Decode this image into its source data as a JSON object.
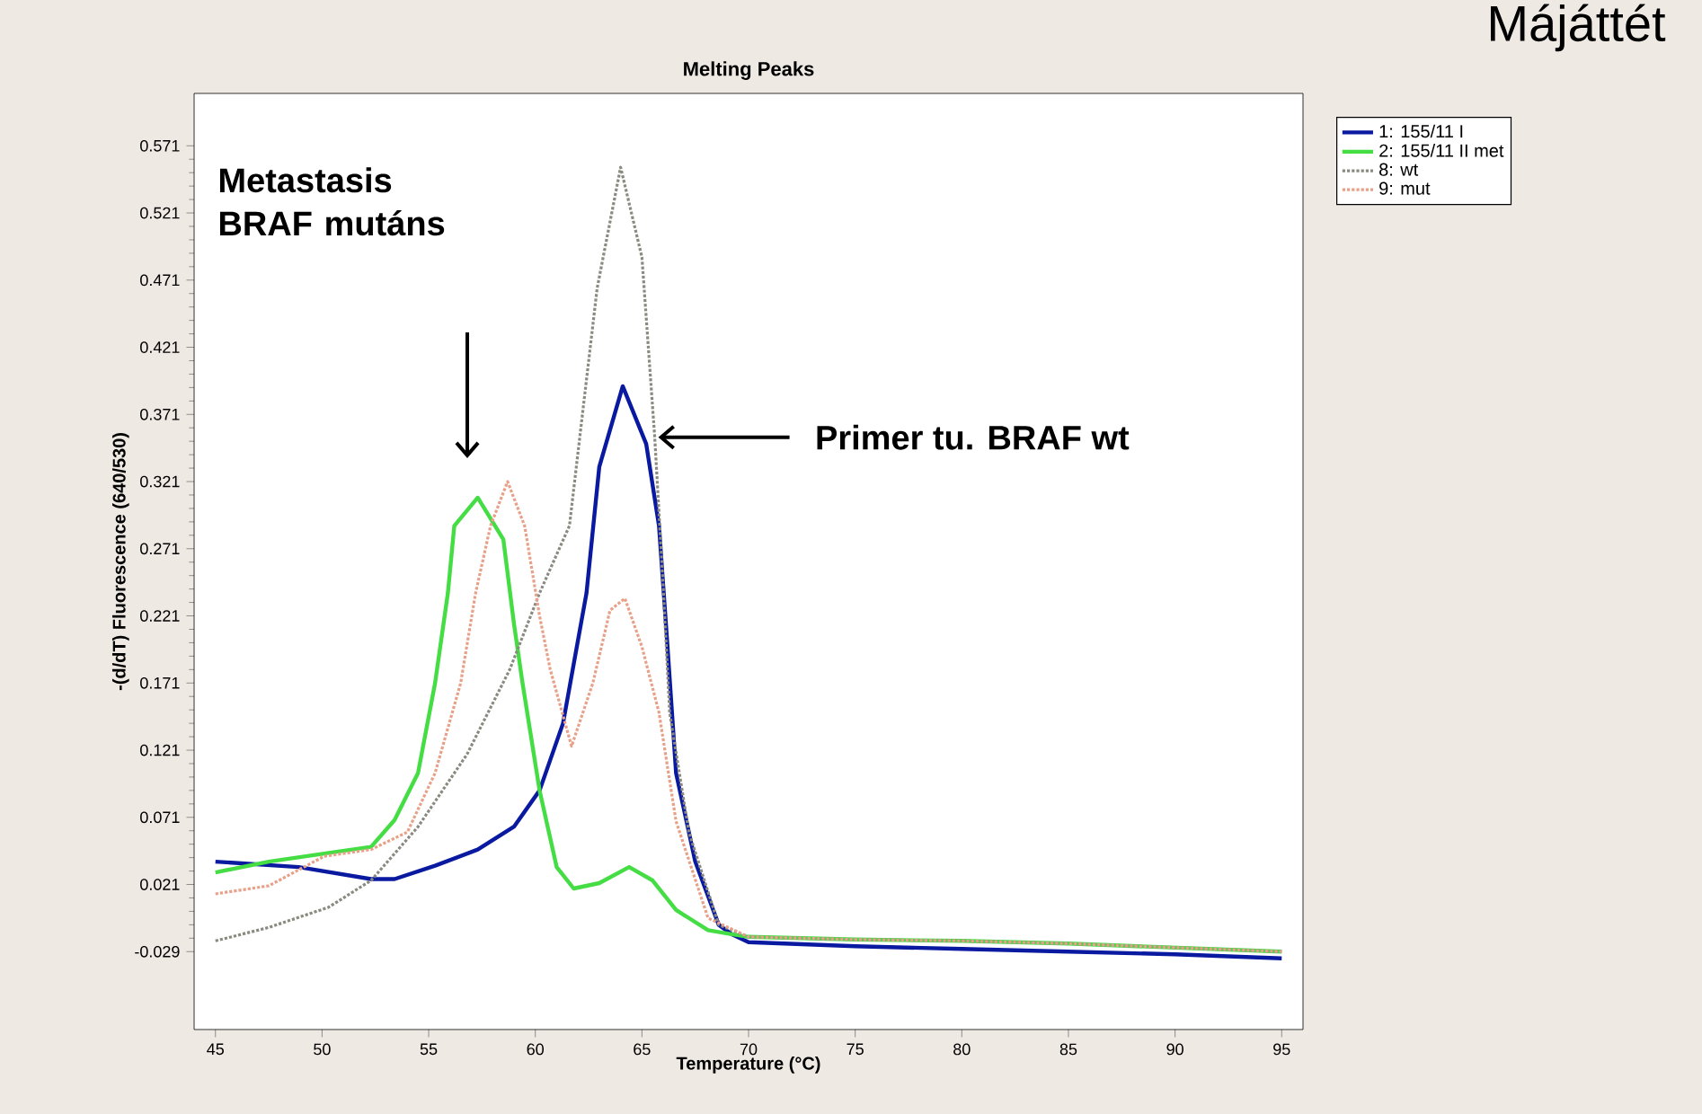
{
  "chart_data": {
    "type": "line",
    "title": "Melting Peaks",
    "xlabel": "Temperature (°C)",
    "ylabel": "-(d/dT) Fluorescence (640/530)",
    "xlim": [
      44,
      96
    ],
    "ylim": [
      -0.087,
      0.61
    ],
    "xticks": [
      45,
      50,
      55,
      60,
      65,
      70,
      75,
      80,
      85,
      90,
      95
    ],
    "yticks": [
      -0.029,
      0.021,
      0.071,
      0.121,
      0.171,
      0.221,
      0.271,
      0.321,
      0.371,
      0.421,
      0.471,
      0.521,
      0.571
    ],
    "legend": "top right",
    "grid": false,
    "series": [
      {
        "name": "1: 155/11 I",
        "color": "#0a1aa0",
        "line_style": "solid",
        "x": [
          45,
          48.9,
          52.3,
          53.4,
          55.3,
          57.3,
          59.0,
          60.2,
          61.3,
          62.4,
          63.0,
          64.1,
          65.2,
          65.8,
          66.2,
          66.6,
          67.5,
          68.6,
          69.2,
          70,
          75,
          80,
          85,
          90,
          95
        ],
        "values": [
          0.038,
          0.034,
          0.025,
          0.025,
          0.035,
          0.047,
          0.064,
          0.091,
          0.141,
          0.238,
          0.332,
          0.392,
          0.349,
          0.288,
          0.198,
          0.104,
          0.038,
          -0.009,
          -0.016,
          -0.022,
          -0.025,
          -0.027,
          -0.029,
          -0.031,
          -0.034
        ]
      },
      {
        "name": "2: 155/11 II met",
        "color": "#44dd44",
        "line_style": "solid",
        "x": [
          45,
          47.5,
          50.1,
          52.3,
          53.4,
          54.5,
          55.3,
          55.9,
          56.2,
          57.3,
          58.5,
          59.0,
          59.4,
          60.2,
          61.0,
          61.8,
          63.0,
          64.4,
          65.5,
          66.6,
          68.1,
          69.2,
          70,
          75,
          80,
          85,
          90,
          95
        ],
        "values": [
          0.03,
          0.038,
          0.044,
          0.049,
          0.069,
          0.104,
          0.171,
          0.238,
          0.288,
          0.309,
          0.278,
          0.215,
          0.171,
          0.091,
          0.034,
          0.018,
          0.022,
          0.034,
          0.024,
          0.002,
          -0.013,
          -0.016,
          -0.018,
          -0.02,
          -0.021,
          -0.023,
          -0.026,
          -0.029
        ]
      },
      {
        "name": "8: wt",
        "color": "#8a8a80",
        "line_style": "dotted",
        "x": [
          45,
          47.5,
          50.3,
          52.3,
          54.5,
          56.8,
          58.8,
          60.2,
          61.6,
          62.9,
          64.0,
          65.0,
          65.6,
          66.0,
          66.3,
          67.2,
          68.6,
          70,
          75,
          80,
          85,
          90,
          95
        ],
        "values": [
          -0.021,
          -0.011,
          0.004,
          0.024,
          0.064,
          0.118,
          0.181,
          0.238,
          0.288,
          0.465,
          0.555,
          0.488,
          0.354,
          0.242,
          0.149,
          0.06,
          -0.009,
          -0.018,
          -0.02,
          -0.021,
          -0.023,
          -0.026,
          -0.029
        ]
      },
      {
        "name": "9: mut",
        "color": "#e8a088",
        "line_style": "dotted",
        "x": [
          45,
          47.5,
          50.1,
          52.3,
          54.0,
          55.3,
          56.5,
          57.2,
          57.9,
          58.7,
          59.5,
          60.2,
          60.7,
          61.7,
          62.7,
          63.5,
          64.2,
          65.0,
          65.8,
          66.6,
          68.1,
          70,
          75,
          80,
          85,
          90,
          95
        ],
        "values": [
          0.014,
          0.02,
          0.042,
          0.047,
          0.06,
          0.104,
          0.171,
          0.238,
          0.288,
          0.321,
          0.288,
          0.221,
          0.181,
          0.124,
          0.171,
          0.225,
          0.234,
          0.198,
          0.149,
          0.068,
          -0.004,
          -0.018,
          -0.02,
          -0.021,
          -0.023,
          -0.026,
          -0.029
        ]
      }
    ],
    "annotations": [
      "Metastasis BRAF mutáns",
      {
        "text": "Primer tu. BRAF wt",
        "x": 65.6,
        "y": 0.354
      },
      "Májáttét"
    ]
  }
}
